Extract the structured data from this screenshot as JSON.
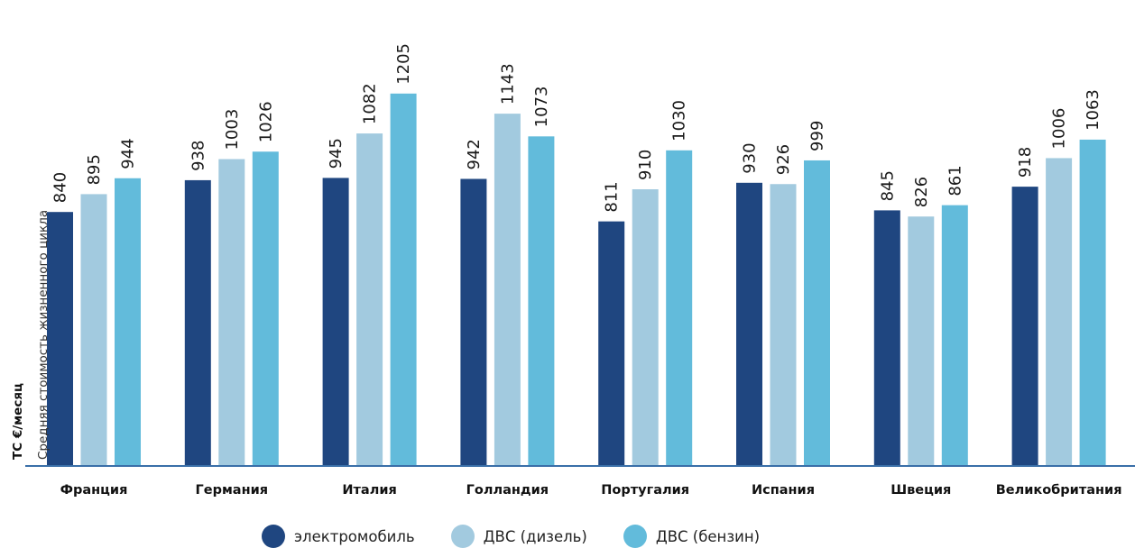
{
  "chart_data": {
    "type": "bar",
    "title": "",
    "xlabel": "",
    "ylabel": {
      "line1": "ТС €/месяц",
      "line2": "Средняя стоимость жизненного цикла"
    },
    "ylim": [
      0,
      1260
    ],
    "grid": false,
    "legend_position": "bottom",
    "categories": [
      "Франция",
      "Германия",
      "Италия",
      "Голландия",
      "Португалия",
      "Испания",
      "Швеция",
      "Великобритания"
    ],
    "series": [
      {
        "name": "электромобиль",
        "color": "#1f4680",
        "values": [
          840,
          938,
          945,
          942,
          811,
          930,
          845,
          918
        ]
      },
      {
        "name": "ДВС (дизель)",
        "color": "#a2cadf",
        "values": [
          895,
          1003,
          1082,
          1143,
          910,
          926,
          826,
          1006
        ]
      },
      {
        "name": "ДВС (бензин)",
        "color": "#62bbdb",
        "values": [
          944,
          1026,
          1205,
          1073,
          1030,
          999,
          861,
          1063
        ]
      }
    ],
    "axis_color": "#3a6fa8"
  }
}
